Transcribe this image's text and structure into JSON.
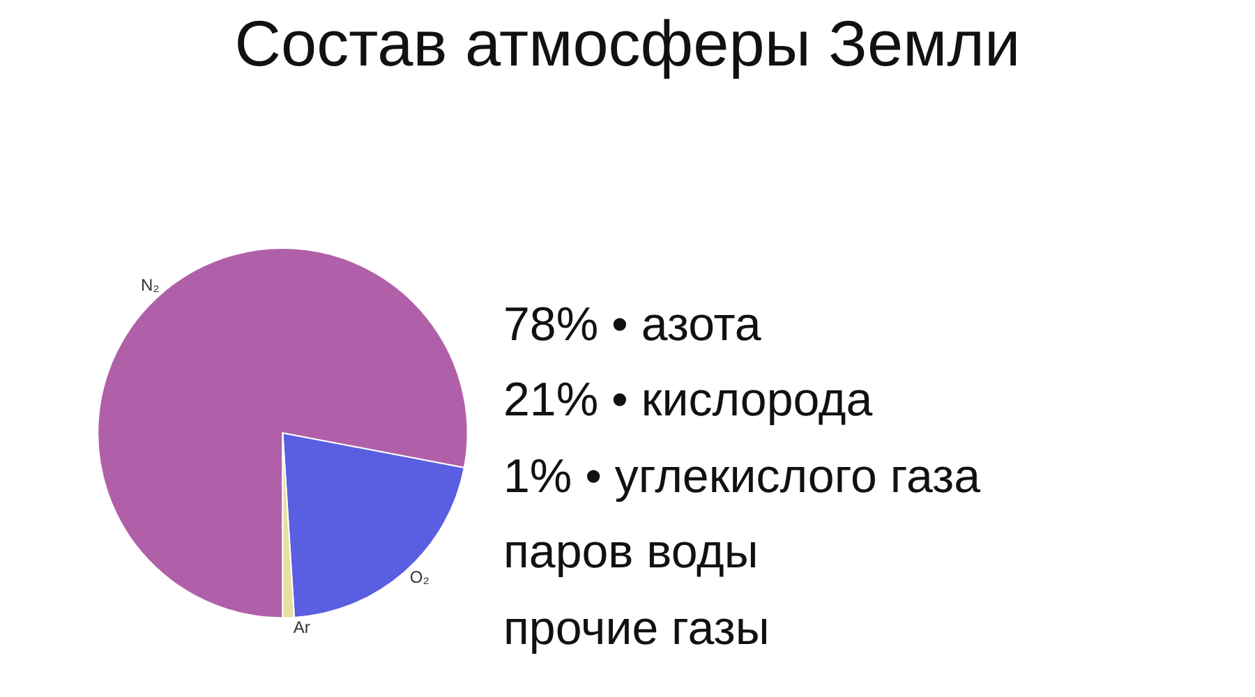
{
  "chart_data": {
    "type": "pie",
    "title": "Состав атмосферы Земли",
    "categories": [
      "N₂",
      "O₂",
      "Ar"
    ],
    "values": [
      78,
      21,
      1
    ],
    "colors": [
      "#b060a8",
      "#5a5ee0",
      "#e8e0a0"
    ],
    "legend": false,
    "annotations": [
      "78% • азота",
      "21% • кислорода",
      "1% • углекислого газа",
      "паров воды",
      "прочие газы"
    ]
  }
}
